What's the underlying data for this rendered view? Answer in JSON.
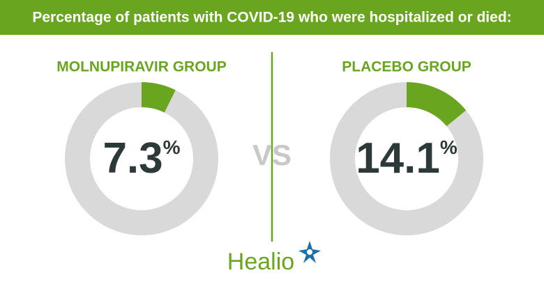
{
  "title": "Percentage of patients with COVID-19 who were hospitalized or died:",
  "separator": "VS",
  "logo": "Healio",
  "chart_data": [
    {
      "type": "donut",
      "title": "MOLNUPIRAVIR GROUP",
      "values": [
        7.3
      ],
      "value_labels": [
        "7.3%"
      ],
      "color": "#69a51f",
      "track_color": "#d9d9d9"
    },
    {
      "type": "donut",
      "title": "PLACEBO GROUP",
      "values": [
        14.1
      ],
      "value_labels": [
        "14.1%"
      ],
      "color": "#69a51f",
      "track_color": "#d9d9d9"
    }
  ]
}
